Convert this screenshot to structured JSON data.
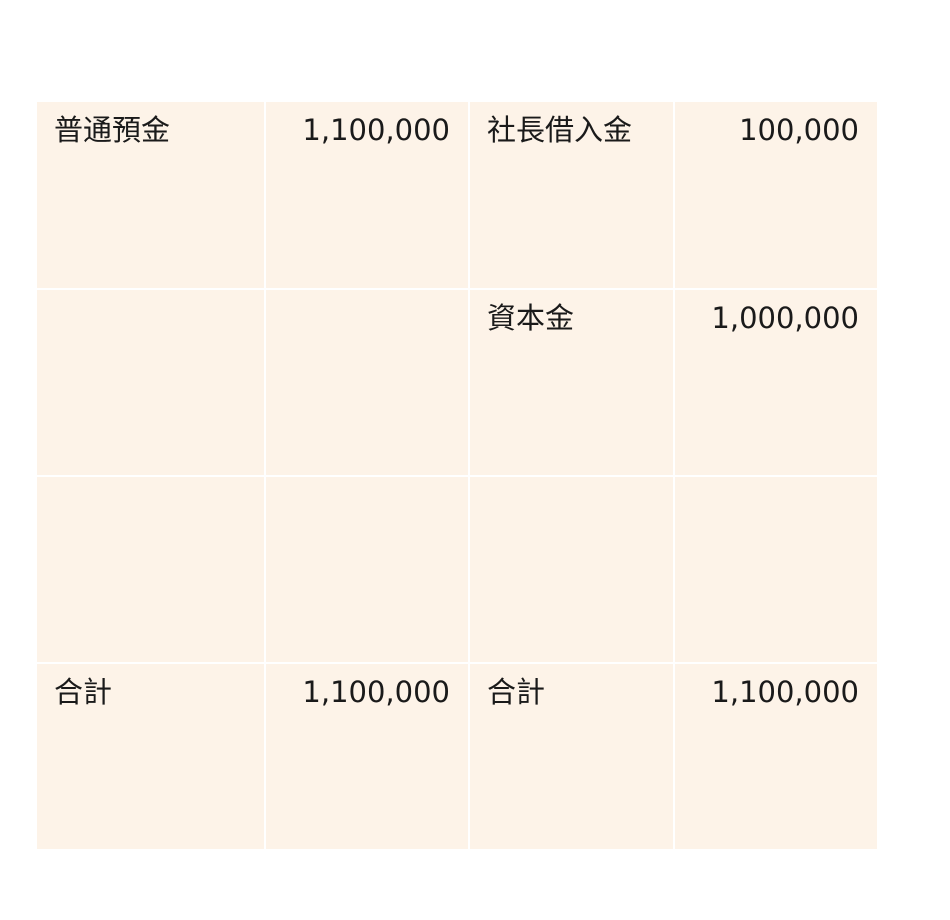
{
  "colors": {
    "cell_background": "#fdf3e8",
    "grid_lines": "#ffffff",
    "text": "#1a1a1a"
  },
  "rows": [
    {
      "left_label": "普通預金",
      "left_amount": "1,100,000",
      "right_label": "社長借入金",
      "right_amount": "100,000"
    },
    {
      "left_label": "",
      "left_amount": "",
      "right_label": "資本金",
      "right_amount": "1,000,000"
    },
    {
      "left_label": "",
      "left_amount": "",
      "right_label": "",
      "right_amount": ""
    },
    {
      "left_label": "合計",
      "left_amount": "1,100,000",
      "right_label": "合計",
      "right_amount": "1,100,000"
    }
  ]
}
